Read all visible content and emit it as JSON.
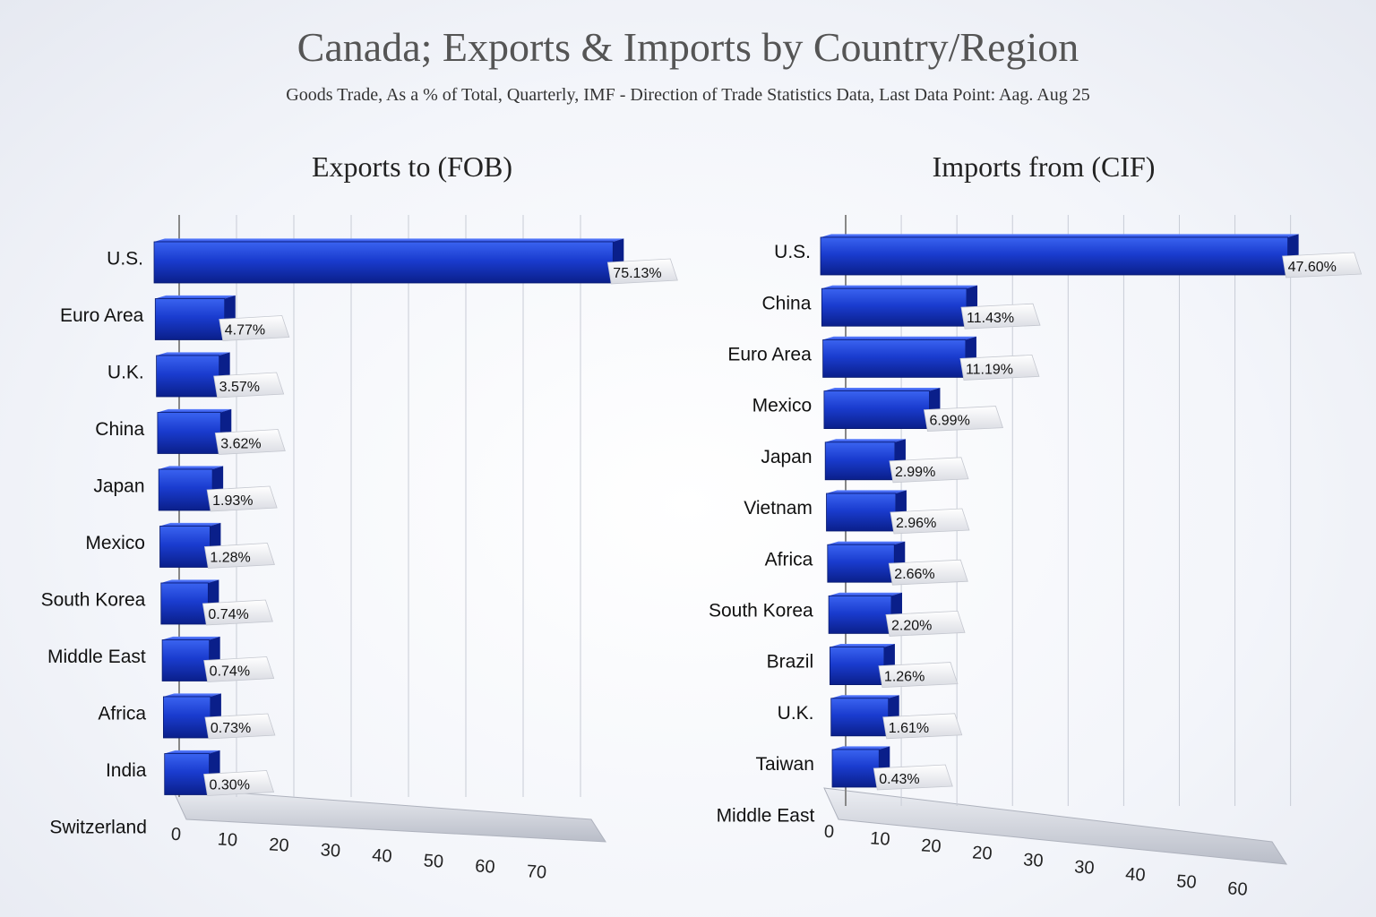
{
  "title": "Canada; Exports & Imports by Country/Region",
  "subtitle": "Goods Trade, As a % of Total, Quarterly, IMF - Direction of Trade Statistics Data, Last Data Point: Aag. Aug 25",
  "colors": {
    "bar": "#1a3ccf",
    "bar_dark": "#0a1f8a",
    "bar_light": "#3a63f0",
    "grid": "#c8ccd6"
  },
  "chart_data": [
    {
      "type": "bar",
      "orientation": "horizontal",
      "title": "Exports to (FOB)",
      "categories": [
        "U.S.",
        "Euro Area",
        "U.K.",
        "China",
        "Japan",
        "Mexico",
        "South Korea",
        "Middle East",
        "Africa",
        "India",
        "Switzerland"
      ],
      "values": [
        75.13,
        4.77,
        3.57,
        3.62,
        1.93,
        1.28,
        0.74,
        0.74,
        0.73,
        0.3,
        null
      ],
      "value_labels": [
        "75.13%",
        "4.77%",
        "3.57%",
        "3.62%",
        "1.93%",
        "1.28%",
        "0.74%",
        "0.74%",
        "0.73%",
        "0.30%",
        ""
      ],
      "x_ticks": [
        "0",
        "10",
        "20",
        "30",
        "40",
        "50",
        "60",
        "70"
      ],
      "xlim": [
        0,
        75
      ],
      "grid": true
    },
    {
      "type": "bar",
      "orientation": "horizontal",
      "title": "Imports from (CIF)",
      "categories": [
        "U.S.",
        "China",
        "Euro Area",
        "Mexico",
        "Japan",
        "Vietnam",
        "Africa",
        "South Korea",
        "Brazil",
        "U.K.",
        "Taiwan",
        "Middle East"
      ],
      "values": [
        47.6,
        11.43,
        11.19,
        6.99,
        2.99,
        2.96,
        2.66,
        2.2,
        1.26,
        1.61,
        0.43,
        null
      ],
      "value_labels": [
        "47.60%",
        "11.43%",
        "11.19%",
        "6.99%",
        "2.99%",
        "2.96%",
        "2.66%",
        "2.20%",
        "1.26%",
        "1.61%",
        "0.43%",
        ""
      ],
      "x_ticks": [
        "0",
        "10",
        "20",
        "20",
        "30",
        "30",
        "40",
        "50",
        "60"
      ],
      "xlim": [
        0,
        48
      ],
      "grid": true
    }
  ]
}
